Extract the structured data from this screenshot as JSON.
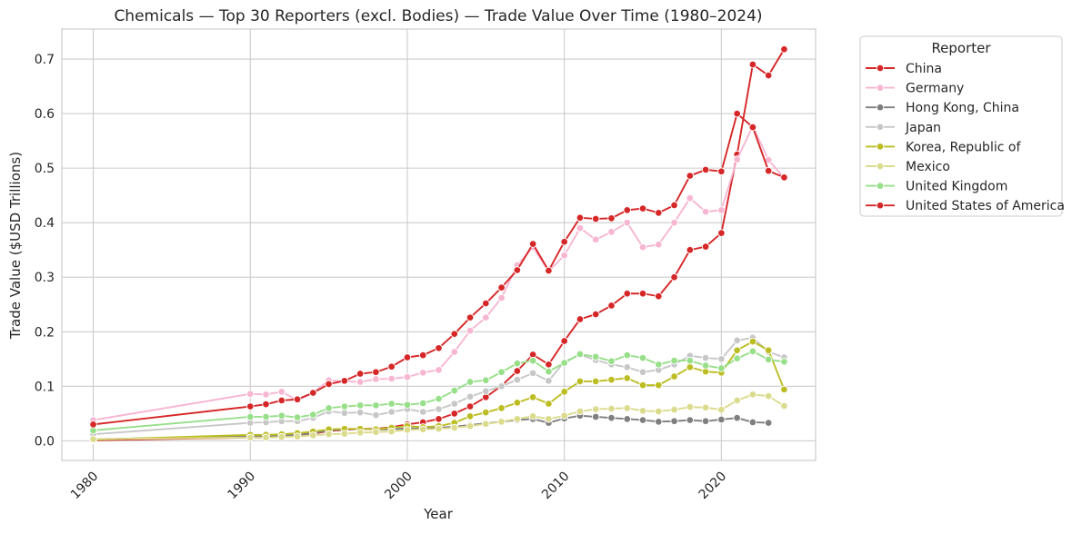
{
  "chart_data": {
    "type": "line",
    "title": "Chemicals — Top 30 Reporters (excl. Bodies) — Trade Value Over Time (1980–2024)",
    "xlabel": "Year",
    "ylabel": "Trade Value ($USD Trillions)",
    "xlim": [
      1978,
      2026
    ],
    "ylim": [
      -0.036,
      0.755
    ],
    "x_ticks": [
      1980,
      1990,
      2000,
      2010,
      2020
    ],
    "y_ticks": [
      0.0,
      0.1,
      0.2,
      0.3,
      0.4,
      0.5,
      0.6,
      0.7
    ],
    "y_tick_labels": [
      "0.0",
      "0.1",
      "0.2",
      "0.3",
      "0.4",
      "0.5",
      "0.6",
      "0.7"
    ],
    "grid": true,
    "legend": {
      "title": "Reporter",
      "placement": "outside-top-right"
    },
    "x": [
      1980,
      1990,
      1991,
      1992,
      1993,
      1994,
      1995,
      1996,
      1997,
      1998,
      1999,
      2000,
      2001,
      2002,
      2003,
      2004,
      2005,
      2006,
      2007,
      2008,
      2009,
      2010,
      2011,
      2012,
      2013,
      2014,
      2015,
      2016,
      2017,
      2018,
      2019,
      2020,
      2021,
      2022,
      2023,
      2024
    ],
    "series": [
      {
        "name": "China",
        "color": "#d62728",
        "values": [
          0.001,
          0.006,
          0.006,
          0.008,
          0.01,
          0.013,
          0.018,
          0.02,
          0.022,
          0.022,
          0.025,
          0.03,
          0.034,
          0.04,
          0.05,
          0.063,
          0.08,
          0.101,
          0.128,
          0.158,
          0.14,
          0.183,
          0.223,
          0.232,
          0.248,
          0.27,
          0.27,
          0.265,
          0.3,
          0.35,
          0.356,
          0.381,
          0.525,
          0.69,
          0.67,
          0.718
        ]
      },
      {
        "name": "Germany",
        "color": "#f7b6d2",
        "values": [
          0.038,
          0.086,
          0.085,
          0.09,
          0.074,
          0.088,
          0.111,
          0.109,
          0.108,
          0.113,
          0.114,
          0.117,
          0.125,
          0.13,
          0.163,
          0.202,
          0.226,
          0.262,
          0.322,
          0.355,
          0.311,
          0.34,
          0.39,
          0.369,
          0.383,
          0.4,
          0.355,
          0.36,
          0.4,
          0.445,
          0.42,
          0.423,
          0.516,
          0.577,
          0.515,
          0.482
        ]
      },
      {
        "name": "Hong Kong, China",
        "color": "#7f7f7f",
        "values": [
          0.003,
          0.008,
          0.009,
          0.01,
          0.011,
          0.014,
          0.019,
          0.021,
          0.022,
          0.021,
          0.021,
          0.023,
          0.022,
          0.024,
          0.026,
          0.029,
          0.032,
          0.035,
          0.038,
          0.04,
          0.033,
          0.041,
          0.046,
          0.044,
          0.042,
          0.04,
          0.038,
          0.035,
          0.036,
          0.038,
          0.036,
          0.039,
          0.042,
          0.034,
          0.033,
          null
        ]
      },
      {
        "name": "Japan",
        "color": "#c7c7c7",
        "values": [
          0.012,
          0.033,
          0.034,
          0.036,
          0.036,
          0.042,
          0.054,
          0.051,
          0.052,
          0.047,
          0.053,
          0.058,
          0.053,
          0.058,
          0.068,
          0.081,
          0.091,
          0.1,
          0.112,
          0.124,
          0.11,
          0.145,
          0.158,
          0.148,
          0.14,
          0.135,
          0.126,
          0.13,
          0.14,
          0.156,
          0.152,
          0.15,
          0.184,
          0.189,
          0.163,
          0.153
        ]
      },
      {
        "name": "Korea, Republic of",
        "color": "#bcbd22",
        "values": [
          0.002,
          0.011,
          0.011,
          0.012,
          0.014,
          0.017,
          0.021,
          0.022,
          0.022,
          0.021,
          0.024,
          0.027,
          0.025,
          0.027,
          0.033,
          0.045,
          0.052,
          0.06,
          0.07,
          0.08,
          0.068,
          0.09,
          0.109,
          0.109,
          0.112,
          0.115,
          0.102,
          0.102,
          0.118,
          0.135,
          0.127,
          0.125,
          0.166,
          0.182,
          0.166,
          0.094
        ]
      },
      {
        "name": "Mexico",
        "color": "#dbdb8d",
        "values": [
          0.003,
          0.006,
          0.006,
          0.007,
          0.008,
          0.01,
          0.012,
          0.013,
          0.015,
          0.016,
          0.017,
          0.02,
          0.021,
          0.022,
          0.024,
          0.027,
          0.031,
          0.035,
          0.04,
          0.045,
          0.04,
          0.046,
          0.054,
          0.058,
          0.059,
          0.06,
          0.055,
          0.054,
          0.057,
          0.062,
          0.061,
          0.057,
          0.074,
          0.085,
          0.082,
          0.064
        ]
      },
      {
        "name": "United Kingdom",
        "color": "#98df8a",
        "values": [
          0.019,
          0.044,
          0.044,
          0.046,
          0.043,
          0.048,
          0.06,
          0.063,
          0.065,
          0.065,
          0.068,
          0.066,
          0.069,
          0.077,
          0.092,
          0.108,
          0.111,
          0.126,
          0.142,
          0.147,
          0.127,
          0.143,
          0.159,
          0.154,
          0.146,
          0.157,
          0.152,
          0.14,
          0.147,
          0.147,
          0.138,
          0.133,
          0.151,
          0.164,
          0.149,
          0.145
        ]
      },
      {
        "name": "United States of America",
        "color": "#d62728",
        "values": [
          0.03,
          0.063,
          0.067,
          0.074,
          0.076,
          0.088,
          0.104,
          0.11,
          0.123,
          0.126,
          0.136,
          0.153,
          0.157,
          0.17,
          0.196,
          0.226,
          0.252,
          0.281,
          0.313,
          0.361,
          0.312,
          0.365,
          0.409,
          0.407,
          0.408,
          0.423,
          0.426,
          0.418,
          0.432,
          0.486,
          0.497,
          0.494,
          0.6,
          0.575,
          0.495,
          0.483
        ]
      }
    ]
  }
}
